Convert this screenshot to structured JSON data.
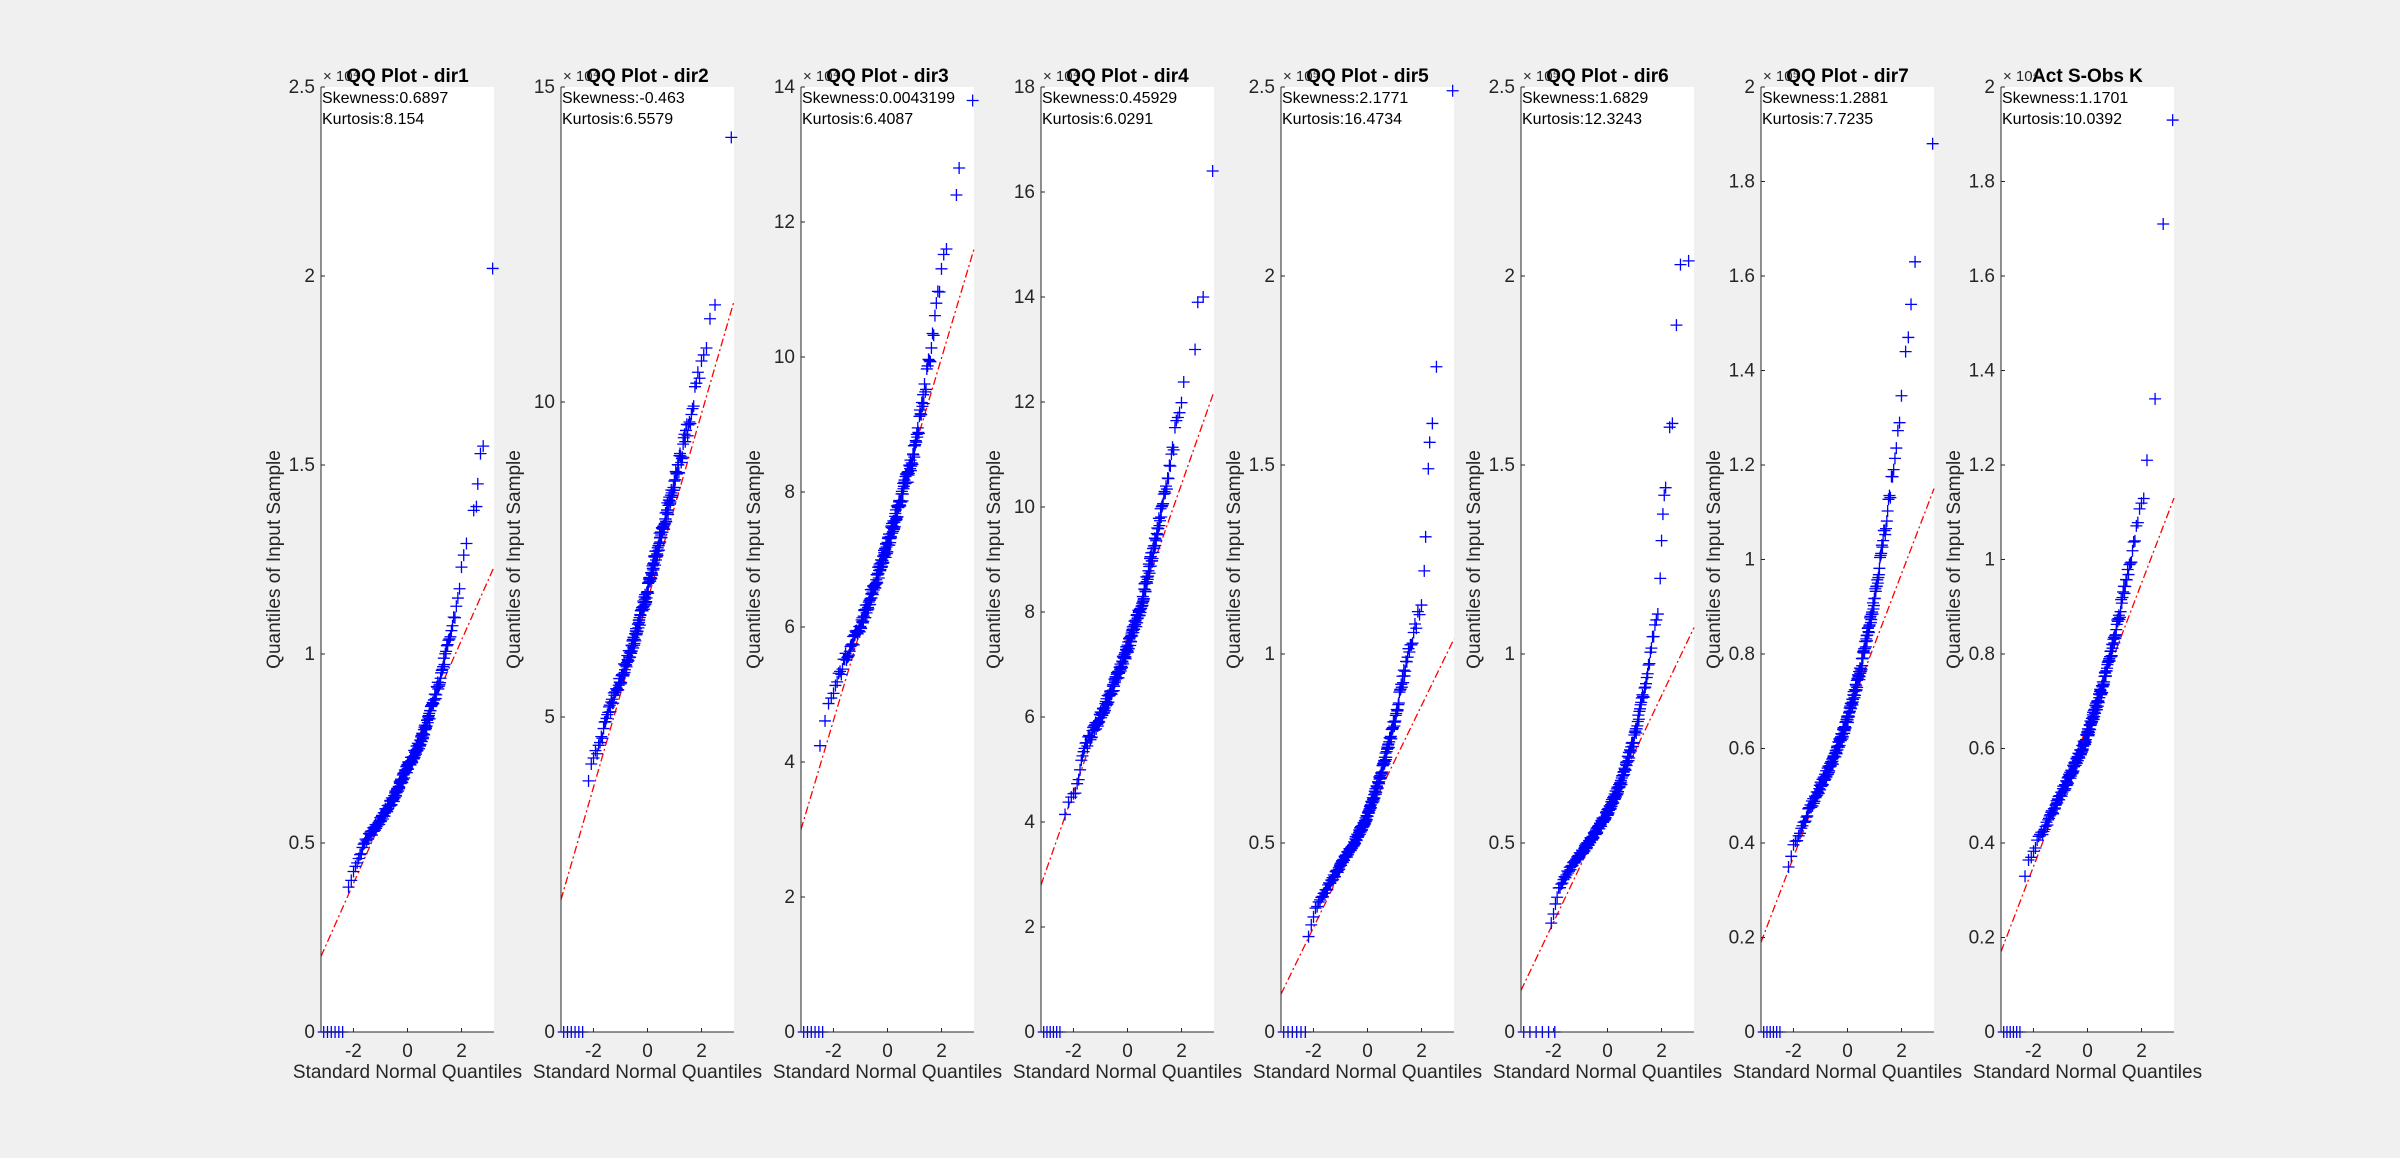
{
  "figure": {
    "background": "#f0f0f0",
    "colors": {
      "marker": "#0000ff",
      "reference_line": "#ff0000",
      "axes": "#262626"
    }
  },
  "chart_data": [
    {
      "type": "scatter",
      "title": "QQ Plot - dir1",
      "xlabel": "Standard Normal Quantiles",
      "ylabel": "Quantiles of Input Sample",
      "exponent_label": "× 10⁴",
      "annotations": [
        "Skewness:0.6897",
        "Kurtosis:8.154"
      ],
      "xlim": [
        -3.2,
        3.2
      ],
      "ylim": [
        0,
        2.5
      ],
      "xticks": [
        -2,
        0,
        2
      ],
      "xtick_labels": [
        "-2",
        "0",
        "2"
      ],
      "yticks": [
        0,
        0.5,
        1,
        1.5,
        2,
        2.5
      ],
      "ytick_labels": [
        "0",
        "0.5",
        "1",
        "1.5",
        "2",
        "2.5"
      ],
      "reference_line": [
        [
          -3.2,
          0.2
        ],
        [
          3.2,
          1.23
        ]
      ],
      "zeros": [
        -3.1,
        -2.4
      ],
      "knots": [
        [
          -2.2,
          0.38
        ],
        [
          -1.6,
          0.5
        ],
        [
          -1.0,
          0.56
        ],
        [
          -0.5,
          0.62
        ],
        [
          0,
          0.7
        ],
        [
          0.5,
          0.77
        ],
        [
          1.0,
          0.88
        ],
        [
          1.5,
          1.02
        ],
        [
          1.8,
          1.12
        ],
        [
          2.1,
          1.27
        ],
        [
          2.3,
          1.3
        ]
      ],
      "outliers": [
        [
          2.45,
          1.38
        ],
        [
          2.55,
          1.39
        ],
        [
          2.6,
          1.45
        ],
        [
          2.7,
          1.53
        ],
        [
          2.8,
          1.55
        ],
        [
          3.15,
          2.02
        ]
      ]
    },
    {
      "type": "scatter",
      "title": "QQ Plot - dir2",
      "xlabel": "Standard Normal Quantiles",
      "ylabel": "Quantiles of Input Sample",
      "exponent_label": "× 10⁴",
      "annotations": [
        "Skewness:-0.463",
        "Kurtosis:6.5579"
      ],
      "xlim": [
        -3.2,
        3.2
      ],
      "ylim": [
        0,
        15
      ],
      "xticks": [
        -2,
        0,
        2
      ],
      "xtick_labels": [
        "-2",
        "0",
        "2"
      ],
      "yticks": [
        0,
        5,
        10,
        15
      ],
      "ytick_labels": [
        "0",
        "5",
        "10",
        "15"
      ],
      "reference_line": [
        [
          -3.2,
          2.1
        ],
        [
          3.2,
          11.6
        ]
      ],
      "zeros": [
        -3.1,
        -2.4
      ],
      "knots": [
        [
          -2.2,
          3.9
        ],
        [
          -2.1,
          4.3
        ],
        [
          -1.8,
          4.5
        ],
        [
          -1.5,
          5.0
        ],
        [
          -1.0,
          5.6
        ],
        [
          -0.5,
          6.2
        ],
        [
          0,
          7.0
        ],
        [
          0.5,
          7.9
        ],
        [
          1.0,
          8.7
        ],
        [
          1.5,
          9.6
        ],
        [
          2.0,
          10.6
        ],
        [
          2.3,
          11.2
        ],
        [
          2.5,
          11.5
        ]
      ],
      "outliers": [
        [
          3.1,
          14.2
        ]
      ]
    },
    {
      "type": "scatter",
      "title": "QQ Plot - dir3",
      "xlabel": "Standard Normal Quantiles",
      "ylabel": "Quantiles of Input Sample",
      "exponent_label": "× 10⁴",
      "annotations": [
        "Skewness:0.0043199",
        "Kurtosis:6.4087"
      ],
      "xlim": [
        -3.2,
        3.2
      ],
      "ylim": [
        0,
        14
      ],
      "xticks": [
        -2,
        0,
        2
      ],
      "xtick_labels": [
        "-2",
        "0",
        "2"
      ],
      "yticks": [
        0,
        2,
        4,
        6,
        8,
        10,
        12,
        14
      ],
      "ytick_labels": [
        "0",
        "2",
        "4",
        "6",
        "8",
        "10",
        "12",
        "14"
      ],
      "reference_line": [
        [
          -3.2,
          3.0
        ],
        [
          3.2,
          11.6
        ]
      ],
      "zeros": [
        -3.1,
        -2.4
      ],
      "knots": [
        [
          -2.5,
          4.2
        ],
        [
          -2.2,
          4.8
        ],
        [
          -1.5,
          5.6
        ],
        [
          -1.0,
          6.0
        ],
        [
          -0.5,
          6.6
        ],
        [
          0,
          7.2
        ],
        [
          0.5,
          7.9
        ],
        [
          1.0,
          8.6
        ],
        [
          1.5,
          9.8
        ],
        [
          1.8,
          10.7
        ],
        [
          2.0,
          11.2
        ],
        [
          2.3,
          11.8
        ]
      ],
      "outliers": [
        [
          2.55,
          12.4
        ],
        [
          2.65,
          12.8
        ],
        [
          3.15,
          13.8
        ]
      ]
    },
    {
      "type": "scatter",
      "title": "QQ Plot - dir4",
      "xlabel": "Standard Normal Quantiles",
      "ylabel": "Quantiles of Input Sample",
      "exponent_label": "× 10⁴",
      "annotations": [
        "Skewness:0.45929",
        "Kurtosis:6.0291"
      ],
      "xlim": [
        -3.2,
        3.2
      ],
      "ylim": [
        0,
        18
      ],
      "xticks": [
        -2,
        0,
        2
      ],
      "xtick_labels": [
        "-2",
        "0",
        "2"
      ],
      "yticks": [
        0,
        2,
        4,
        6,
        8,
        10,
        12,
        14,
        16,
        18
      ],
      "ytick_labels": [
        "0",
        "2",
        "4",
        "6",
        "8",
        "10",
        "12",
        "14",
        "16",
        "18"
      ],
      "reference_line": [
        [
          -3.2,
          2.8
        ],
        [
          3.2,
          12.2
        ]
      ],
      "zeros": [
        -3.1,
        -2.5
      ],
      "knots": [
        [
          -2.4,
          4.0
        ],
        [
          -2.2,
          4.4
        ],
        [
          -1.9,
          4.6
        ],
        [
          -1.6,
          5.4
        ],
        [
          -1.0,
          6.0
        ],
        [
          -0.5,
          6.6
        ],
        [
          0,
          7.3
        ],
        [
          0.5,
          8.1
        ],
        [
          1.0,
          9.3
        ],
        [
          1.5,
          10.5
        ],
        [
          1.8,
          11.5
        ],
        [
          2.1,
          12.3
        ]
      ],
      "outliers": [
        [
          2.5,
          13.0
        ],
        [
          2.6,
          13.9
        ],
        [
          2.8,
          14.0
        ],
        [
          3.15,
          16.4
        ]
      ]
    },
    {
      "type": "scatter",
      "title": "QQ Plot - dir5",
      "xlabel": "Standard Normal Quantiles",
      "ylabel": "Quantiles of Input Sample",
      "exponent_label": "× 10⁵",
      "annotations": [
        "Skewness:2.1771",
        "Kurtosis:16.4734"
      ],
      "xlim": [
        -3.2,
        3.2
      ],
      "ylim": [
        0,
        2.5
      ],
      "xticks": [
        -2,
        0,
        2
      ],
      "xtick_labels": [
        "-2",
        "0",
        "2"
      ],
      "yticks": [
        0,
        0.5,
        1,
        1.5,
        2,
        2.5
      ],
      "ytick_labels": [
        "0",
        "0.5",
        "1",
        "1.5",
        "2",
        "2.5"
      ],
      "reference_line": [
        [
          -3.2,
          0.1
        ],
        [
          3.2,
          1.04
        ]
      ],
      "zeros": [
        -3.1,
        -2.3
      ],
      "knots": [
        [
          -2.2,
          0.25
        ],
        [
          -1.9,
          0.33
        ],
        [
          -1.5,
          0.38
        ],
        [
          -1.0,
          0.44
        ],
        [
          -0.5,
          0.5
        ],
        [
          0,
          0.57
        ],
        [
          0.5,
          0.68
        ],
        [
          1.0,
          0.82
        ],
        [
          1.3,
          0.93
        ],
        [
          1.5,
          1.0
        ],
        [
          1.8,
          1.08
        ],
        [
          2.0,
          1.13
        ]
      ],
      "outliers": [
        [
          2.1,
          1.22
        ],
        [
          2.15,
          1.31
        ],
        [
          2.25,
          1.49
        ],
        [
          2.3,
          1.56
        ],
        [
          2.4,
          1.61
        ],
        [
          2.55,
          1.76
        ],
        [
          3.15,
          2.49
        ]
      ]
    },
    {
      "type": "scatter",
      "title": "QQ Plot - dir6",
      "xlabel": "Standard Normal Quantiles",
      "ylabel": "Quantiles of Input Sample",
      "exponent_label": "× 10⁵",
      "annotations": [
        "Skewness:1.6829",
        "Kurtosis:12.3243"
      ],
      "xlim": [
        -3.2,
        3.2
      ],
      "ylim": [
        0,
        2.5
      ],
      "xticks": [
        -2,
        0,
        2
      ],
      "xtick_labels": [
        "-2",
        "0",
        "2"
      ],
      "yticks": [
        0,
        0.5,
        1,
        1.5,
        2,
        2.5
      ],
      "ytick_labels": [
        "0",
        "0.5",
        "1",
        "1.5",
        "2",
        "2.5"
      ],
      "reference_line": [
        [
          -3.2,
          0.11
        ],
        [
          3.2,
          1.07
        ]
      ],
      "zeros": [
        -3.1,
        -1.95
      ],
      "knots": [
        [
          -2.1,
          0.28
        ],
        [
          -1.8,
          0.38
        ],
        [
          -1.5,
          0.42
        ],
        [
          -1.0,
          0.47
        ],
        [
          -0.5,
          0.52
        ],
        [
          0,
          0.58
        ],
        [
          0.5,
          0.66
        ],
        [
          1.0,
          0.78
        ],
        [
          1.5,
          0.95
        ],
        [
          1.7,
          1.05
        ],
        [
          1.9,
          1.12
        ]
      ],
      "outliers": [
        [
          1.95,
          1.2
        ],
        [
          2.0,
          1.3
        ],
        [
          2.05,
          1.37
        ],
        [
          2.1,
          1.42
        ],
        [
          2.15,
          1.44
        ],
        [
          2.3,
          1.6
        ],
        [
          2.4,
          1.61
        ],
        [
          2.55,
          1.87
        ],
        [
          2.7,
          2.03
        ],
        [
          3.0,
          2.04
        ]
      ]
    },
    {
      "type": "scatter",
      "title": "QQ Plot - dir7",
      "xlabel": "Standard Normal Quantiles",
      "ylabel": "Quantiles of Input Sample",
      "exponent_label": "× 10⁵",
      "annotations": [
        "Skewness:1.2881",
        "Kurtosis:7.7235"
      ],
      "xlim": [
        -3.2,
        3.2
      ],
      "ylim": [
        0,
        2
      ],
      "xticks": [
        -2,
        0,
        2
      ],
      "xtick_labels": [
        "-2",
        "0",
        "2"
      ],
      "yticks": [
        0,
        0.2,
        0.4,
        0.6,
        0.8,
        1,
        1.2,
        1.4,
        1.6,
        1.8,
        2
      ],
      "ytick_labels": [
        "0",
        "0.2",
        "0.4",
        "0.6",
        "0.8",
        "1",
        "1.2",
        "1.4",
        "1.6",
        "1.8",
        "2"
      ],
      "reference_line": [
        [
          -3.2,
          0.19
        ],
        [
          3.2,
          1.15
        ]
      ],
      "zeros": [
        -3.1,
        -2.5
      ],
      "knots": [
        [
          -2.3,
          0.32
        ],
        [
          -2.0,
          0.39
        ],
        [
          -1.5,
          0.46
        ],
        [
          -1.0,
          0.52
        ],
        [
          -0.5,
          0.58
        ],
        [
          0,
          0.66
        ],
        [
          0.5,
          0.77
        ],
        [
          1.0,
          0.92
        ],
        [
          1.3,
          1.03
        ],
        [
          1.6,
          1.15
        ],
        [
          1.9,
          1.28
        ],
        [
          2.05,
          1.38
        ]
      ],
      "outliers": [
        [
          2.15,
          1.44
        ],
        [
          2.25,
          1.47
        ],
        [
          2.35,
          1.54
        ],
        [
          2.5,
          1.63
        ],
        [
          3.15,
          1.88
        ]
      ]
    },
    {
      "type": "scatter",
      "title": "Act S-Obs K",
      "xlabel": "Standard Normal Quantiles",
      "ylabel": "Quantiles of Input Sample",
      "exponent_label": "× 10⁴",
      "annotations": [
        "Skewness:1.1701",
        "Kurtosis:10.0392"
      ],
      "xlim": [
        -3.2,
        3.2
      ],
      "ylim": [
        0,
        2
      ],
      "xticks": [
        -2,
        0,
        2
      ],
      "xtick_labels": [
        "-2",
        "0",
        "2"
      ],
      "yticks": [
        0,
        0.2,
        0.4,
        0.6,
        0.8,
        1,
        1.2,
        1.4,
        1.6,
        1.8,
        2
      ],
      "ytick_labels": [
        "0",
        "0.2",
        "0.4",
        "0.6",
        "0.8",
        "1",
        "1.2",
        "1.4",
        "1.6",
        "1.8",
        "2"
      ],
      "reference_line": [
        [
          -3.2,
          0.17
        ],
        [
          3.2,
          1.13
        ]
      ],
      "zeros": [
        -3.1,
        -2.5
      ],
      "knots": [
        [
          -2.4,
          0.3
        ],
        [
          -2.2,
          0.36
        ],
        [
          -1.8,
          0.41
        ],
        [
          -1.5,
          0.44
        ],
        [
          -1.0,
          0.5
        ],
        [
          -0.5,
          0.56
        ],
        [
          0,
          0.63
        ],
        [
          0.5,
          0.72
        ],
        [
          1.0,
          0.83
        ],
        [
          1.3,
          0.92
        ],
        [
          1.6,
          1.0
        ],
        [
          1.9,
          1.1
        ],
        [
          2.1,
          1.15
        ]
      ],
      "outliers": [
        [
          2.2,
          1.21
        ],
        [
          2.5,
          1.34
        ],
        [
          2.8,
          1.71
        ],
        [
          3.15,
          1.93
        ]
      ]
    }
  ]
}
